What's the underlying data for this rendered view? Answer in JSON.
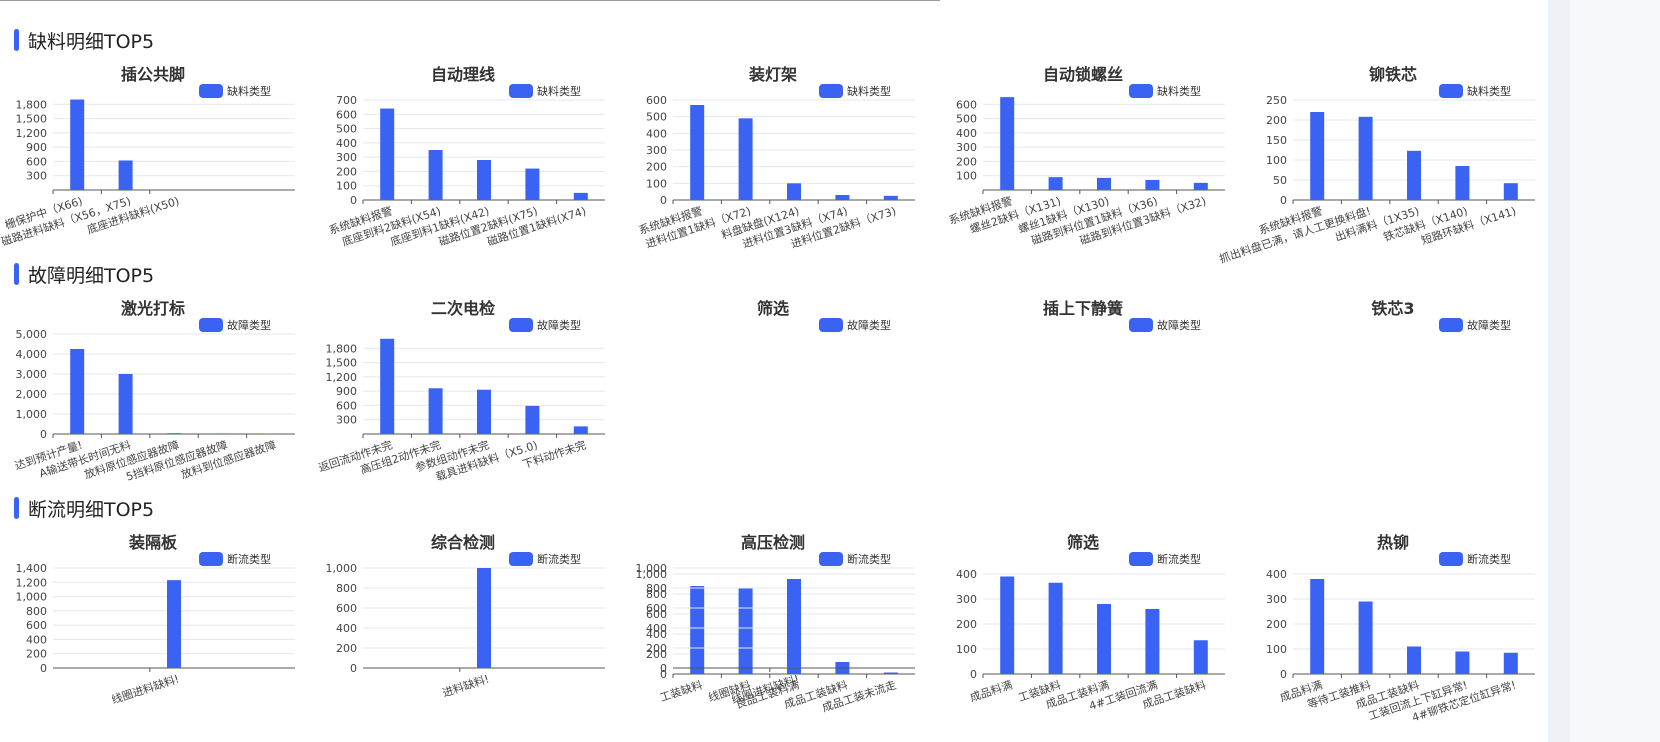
{
  "theme": {
    "accent": "#3a63f3",
    "bar_color": "#3a63f3",
    "grid_color": "#e4e7ee",
    "axis_color": "#555555"
  },
  "sections": [
    {
      "title": "缺料明细TOP5"
    },
    {
      "title": "故障明细TOP5"
    },
    {
      "title": "断流明细TOP5"
    }
  ],
  "chart_data": [
    {
      "section": 0,
      "type": "bar",
      "title": "插公共脚",
      "legend": "缺料类型",
      "categories": [
        "栅保护中（X66)",
        "磁路进料缺料（X56，X75)",
        "底座进料缺料(X50)"
      ],
      "values": [
        1900,
        620,
        0
      ],
      "yticks": [
        300,
        600,
        900,
        1200,
        1500,
        1800
      ],
      "ylim": [
        0,
        2100
      ]
    },
    {
      "section": 0,
      "type": "bar",
      "title": "自动理线",
      "legend": "缺料类型",
      "categories": [
        "系统缺料报警",
        "底座到料2缺料(X54)",
        "底座到料1缺料(X42)",
        "磁路位置2缺料(X75)",
        "磁路位置1缺料(X74)"
      ],
      "values": [
        640,
        350,
        280,
        220,
        50
      ],
      "yticks": [
        0,
        100,
        200,
        300,
        400,
        500,
        600,
        700
      ],
      "ylim": [
        0,
        700
      ]
    },
    {
      "section": 0,
      "type": "bar",
      "title": "装灯架",
      "legend": "缺料类型",
      "categories": [
        "系统缺料报警",
        "进料位置1缺料（X72)",
        "料盘缺盘(X124)",
        "进料位置3缺料（X74)",
        "进料位置2缺料（X73)"
      ],
      "values": [
        570,
        490,
        100,
        30,
        25
      ],
      "yticks": [
        0,
        100,
        200,
        300,
        400,
        500,
        600
      ],
      "ylim": [
        0,
        600
      ]
    },
    {
      "section": 0,
      "type": "bar",
      "title": "自动锁螺丝",
      "legend": "缺料类型",
      "categories": [
        "系统缺料报警",
        "螺丝2缺料（X131)",
        "螺丝1缺料（X130)",
        "磁路到料位置1缺料（X36)",
        "磁路到料位置3缺料（X32)"
      ],
      "values": [
        650,
        90,
        85,
        70,
        50
      ],
      "yticks": [
        100,
        200,
        300,
        400,
        500,
        600
      ],
      "ylim": [
        0,
        700
      ]
    },
    {
      "section": 0,
      "type": "bar",
      "title": "铆铁芯",
      "legend": "缺料类型",
      "categories": [
        "系统缺料报警",
        "抓出料盘已满，请人工更换料盘!",
        "出料满料（1X35)",
        "铁芯缺料（X140)",
        "短路环缺料（X141)"
      ],
      "values": [
        220,
        208,
        123,
        85,
        42
      ],
      "yticks": [
        0,
        50,
        100,
        150,
        200,
        250
      ],
      "ylim": [
        0,
        250
      ]
    },
    {
      "section": 1,
      "type": "bar",
      "title": "激光打标",
      "legend": "故障类型",
      "categories": [
        "达到预计产量!",
        "A输送带长时间无料",
        "放料原位感应器故障",
        "5挡料原位感应器故障",
        "放料到位感应器故障"
      ],
      "values": [
        4250,
        3000,
        40,
        30,
        20
      ],
      "yticks": [
        0,
        1000,
        2000,
        3000,
        4000,
        5000
      ],
      "ylim": [
        0,
        5000
      ]
    },
    {
      "section": 1,
      "type": "bar",
      "title": "二次电检",
      "legend": "故障类型",
      "categories": [
        "返回流动作未完",
        "高压组2动作未完",
        "参数组动作未完",
        "载具进料缺料（X5.0)",
        "下料动作未完"
      ],
      "values": [
        2000,
        960,
        930,
        590,
        160
      ],
      "yticks": [
        300,
        600,
        900,
        1200,
        1500,
        1800
      ],
      "ylim": [
        0,
        2100
      ]
    },
    {
      "section": 1,
      "type": "bar",
      "title": "筛选",
      "legend": "故障类型",
      "categories": [
        "工装缺料",
        "线圈缺料",
        "良品工装料满",
        "成品工装缺料",
        "成品工装未流走"
      ],
      "values": [
        880,
        860,
        210,
        120,
        15
      ],
      "yticks": [
        0,
        200,
        400,
        600,
        800,
        1000
      ],
      "ylim": [
        0,
        1000
      ]
    },
    {
      "section": 1,
      "type": "bar",
      "title": "插上下静簧",
      "legend": "故障类型",
      "categories": [
        "成品料满",
        "工装缺料",
        "成品工装料满",
        "4#工装回流满",
        "成品工装缺料"
      ],
      "values": [
        390,
        365,
        280,
        260,
        135
      ],
      "yticks": [
        0,
        100,
        200,
        300,
        400
      ],
      "ylim": [
        0,
        400
      ]
    },
    {
      "section": 1,
      "type": "bar",
      "title": "铁芯3",
      "legend": "故障类型",
      "categories": [
        "成品料满",
        "等待工装推料",
        "成品工装缺料",
        "工装回流上下缸异常!",
        "4#铆铁芯定位缸异常!"
      ],
      "values": [
        380,
        290,
        110,
        90,
        85
      ],
      "yticks": [
        0,
        100,
        200,
        300,
        400
      ],
      "ylim": [
        0,
        400
      ]
    },
    {
      "section": 2,
      "type": "bar",
      "title": "装隔板",
      "legend": "断流类型",
      "categories": [
        "线圈进料缺料!"
      ],
      "values": [
        1230
      ],
      "yticks": [
        0,
        200,
        400,
        600,
        800,
        1000,
        1200,
        1400
      ],
      "ylim": [
        0,
        1400
      ]
    },
    {
      "section": 2,
      "type": "bar",
      "title": "综合检测",
      "legend": "断流类型",
      "categories": [
        "进料缺料!"
      ],
      "values": [
        1000
      ],
      "yticks": [
        0,
        200,
        400,
        600,
        800,
        1000
      ],
      "ylim": [
        0,
        1000
      ]
    },
    {
      "section": 2,
      "type": "bar",
      "title": "高压检测",
      "legend": "断流类型",
      "categories": [
        "线圈进料缺料!"
      ],
      "values": [
        890
      ],
      "yticks": [
        0,
        200,
        400,
        600,
        800,
        1000
      ],
      "ylim": [
        0,
        1000
      ]
    },
    {
      "section": 2,
      "type": "bar",
      "title": "筛选",
      "legend": "断流类型",
      "categories": [],
      "values": [],
      "yticks": [],
      "ylim": [
        0,
        1
      ]
    },
    {
      "section": 2,
      "type": "bar",
      "title": "热铆",
      "legend": "断流类型",
      "categories": [],
      "values": [],
      "yticks": [],
      "ylim": [
        0,
        1
      ]
    }
  ]
}
